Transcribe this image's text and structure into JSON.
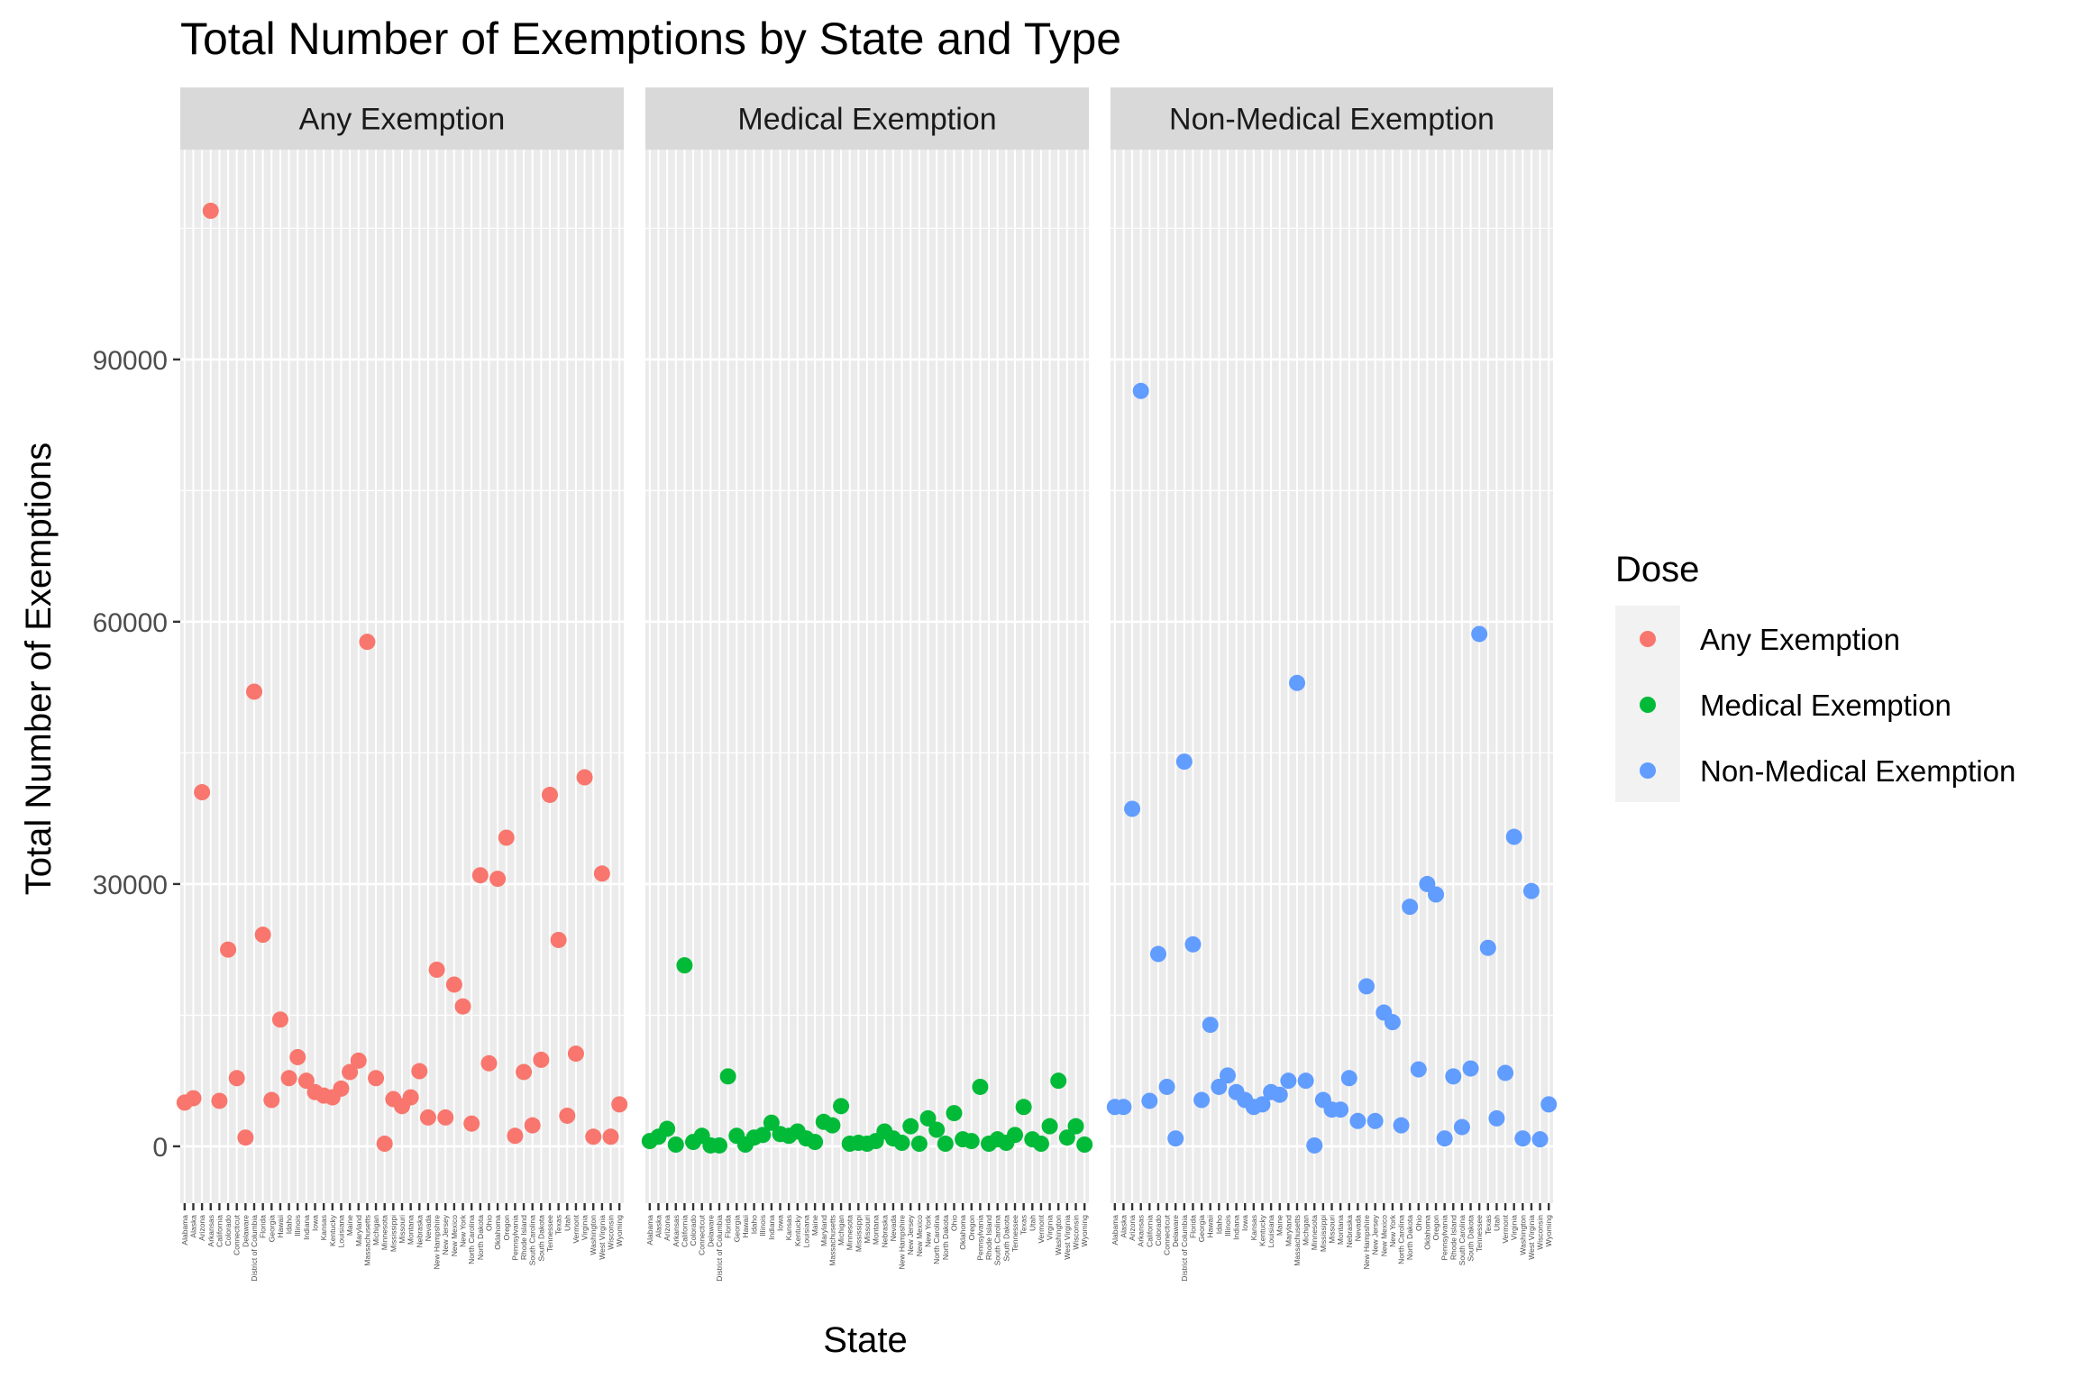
{
  "chart_data": {
    "type": "scatter",
    "title": "Total Number of Exemptions by State and Type",
    "xlabel": "State",
    "ylabel": "Total Number of Exemptions",
    "ylim": [
      -6500,
      114000
    ],
    "yticks": [
      0,
      30000,
      60000,
      90000
    ],
    "ytick_labels": [
      "0",
      "30000",
      "60000",
      "90000"
    ],
    "grid": true,
    "legend": {
      "title": "Dose",
      "placement": "right",
      "entries": [
        "Any Exemption",
        "Medical Exemption",
        "Non-Medical Exemption"
      ]
    },
    "facets": [
      "Any Exemption",
      "Medical Exemption",
      "Non-Medical Exemption"
    ],
    "categories": [
      "Alabama",
      "Alaska",
      "Arizona",
      "Arkansas",
      "California",
      "Colorado",
      "Connecticut",
      "Delaware",
      "District of Columbia",
      "Florida",
      "Georgia",
      "Hawaii",
      "Idaho",
      "Illinois",
      "Indiana",
      "Iowa",
      "Kansas",
      "Kentucky",
      "Louisiana",
      "Maine",
      "Maryland",
      "Massachusetts",
      "Michigan",
      "Minnesota",
      "Mississippi",
      "Missouri",
      "Montana",
      "Nebraska",
      "Nevada",
      "New Hampshire",
      "New Jersey",
      "New Mexico",
      "New York",
      "North Carolina",
      "North Dakota",
      "Ohio",
      "Oklahoma",
      "Oregon",
      "Pennsylvania",
      "Rhode Island",
      "South Carolina",
      "South Dakota",
      "Tennessee",
      "Texas",
      "Utah",
      "Vermont",
      "Virginia",
      "Washington",
      "West Virginia",
      "Wisconsin",
      "Wyoming"
    ],
    "series": [
      {
        "name": "Any Exemption",
        "color": "#F8766D",
        "values": [
          5000,
          5500,
          40500,
          107000,
          5200,
          22500,
          7800,
          1000,
          52000,
          24200,
          5300,
          14500,
          7800,
          10200,
          7500,
          6200,
          5800,
          5600,
          6600,
          8500,
          9800,
          57700,
          7800,
          300,
          5400,
          4600,
          5600,
          8600,
          3300,
          20200,
          3300,
          18500,
          16000,
          2600,
          31000,
          9500,
          30600,
          35300,
          1200,
          8500,
          2400,
          9900,
          40200,
          23600,
          3500,
          10600,
          42200,
          1100,
          31200,
          1100,
          4800
        ]
      },
      {
        "name": "Medical Exemption",
        "color": "#00BA38",
        "values": [
          600,
          1100,
          2000,
          200,
          20700,
          500,
          1200,
          100,
          100,
          8000,
          1200,
          200,
          1000,
          1300,
          2700,
          1400,
          1200,
          1700,
          900,
          500,
          2800,
          2400,
          4600,
          300,
          400,
          300,
          600,
          1700,
          900,
          400,
          2300,
          300,
          3200,
          1900,
          300,
          3800,
          800,
          600,
          6800,
          300,
          800,
          400,
          1300,
          4500,
          800,
          300,
          2300,
          7500,
          1000,
          2300,
          200
        ]
      },
      {
        "name": "Non-Medical Exemption",
        "color": "#619CFF",
        "values": [
          4500,
          4500,
          38600,
          86400,
          5200,
          22000,
          6800,
          900,
          44000,
          23100,
          5300,
          13900,
          6800,
          8100,
          6200,
          5300,
          4500,
          4800,
          6200,
          5900,
          7500,
          53000,
          7500,
          100,
          5300,
          4200,
          4200,
          7800,
          2900,
          18300,
          2900,
          15300,
          14200,
          2400,
          27400,
          8800,
          30000,
          28800,
          900,
          8000,
          2200,
          8900,
          58600,
          22700,
          3200,
          8400,
          35400,
          900,
          29200,
          800,
          4800
        ]
      }
    ]
  }
}
